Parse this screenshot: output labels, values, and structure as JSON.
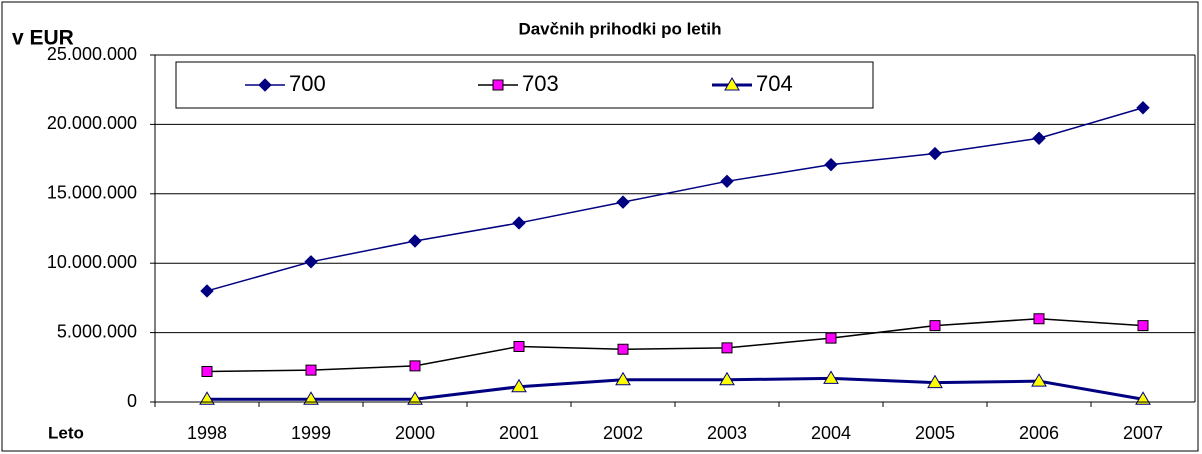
{
  "chart_data": {
    "type": "line",
    "title": "Davčnih prihodki po letih",
    "y_label": "v EUR",
    "x_label": "Leto",
    "categories": [
      "1998",
      "1999",
      "2000",
      "2001",
      "2002",
      "2003",
      "2004",
      "2005",
      "2006",
      "2007"
    ],
    "series": [
      {
        "name": "700",
        "color": "#000080",
        "marker": "diamond",
        "marker_color": "#000080",
        "line_width": 1.5,
        "values": [
          8000000,
          10100000,
          11600000,
          12900000,
          14400000,
          15900000,
          17100000,
          17900000,
          19000000,
          21200000
        ]
      },
      {
        "name": "703",
        "color": "#000000",
        "marker": "square",
        "marker_color": "#ff00ff",
        "line_width": 1.5,
        "values": [
          2200000,
          2300000,
          2600000,
          4000000,
          3800000,
          3900000,
          4600000,
          5500000,
          6000000,
          5500000
        ]
      },
      {
        "name": "704",
        "color": "#000080",
        "marker": "triangle",
        "marker_color": "#ffff00",
        "line_width": 3,
        "values": [
          200000,
          200000,
          200000,
          1100000,
          1600000,
          1600000,
          1700000,
          1400000,
          1500000,
          200000
        ]
      }
    ],
    "ylim": [
      0,
      25000000
    ],
    "yticks": [
      0,
      {
        "value": 5000000,
        "label": "5.000.000"
      },
      {
        "value": 10000000,
        "label": "10.000.000"
      },
      {
        "value": 15000000,
        "label": "15.000.000"
      },
      {
        "value": 20000000,
        "label": "20.000.000"
      },
      {
        "value": 25000000,
        "label": "25.000.000"
      }
    ],
    "grid": true,
    "legend": "top"
  }
}
